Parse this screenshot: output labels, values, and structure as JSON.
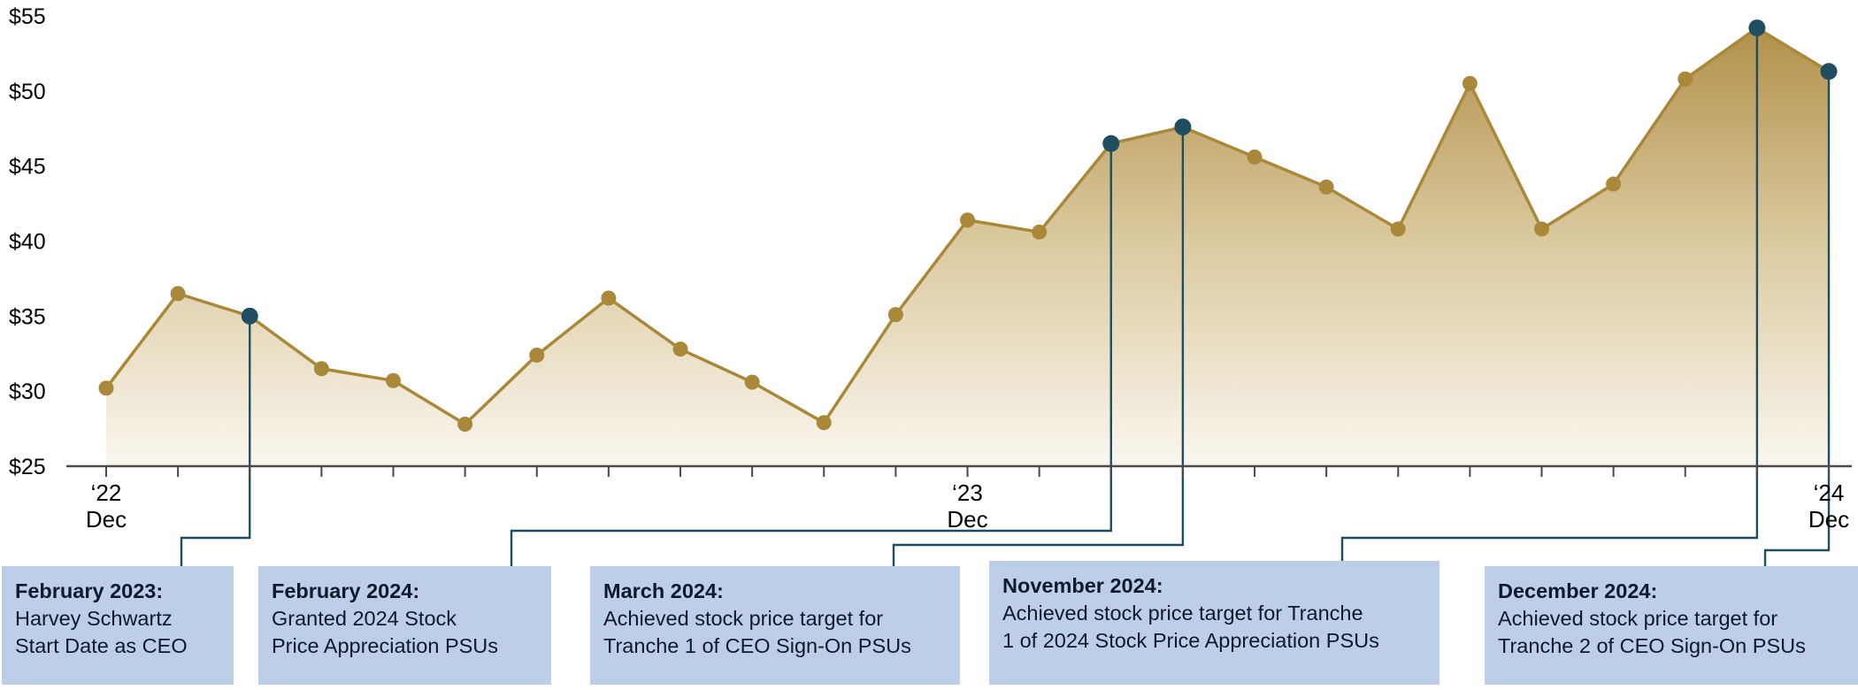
{
  "colors": {
    "line": "#AA8839",
    "marker": "#AA8839",
    "event_marker": "#1E4E60",
    "connector": "#1E4E60",
    "area_top": "#B2904A",
    "area_mid": "#DCCBA2",
    "area_bottom": "#FAF7EF",
    "axis": "#4A4A4A",
    "callout_bg": "#BDCFE8",
    "axis_text": "#000000",
    "callout_text": "#0E1A2B"
  },
  "chart_data": {
    "type": "area",
    "title": "",
    "xlabel": "",
    "ylabel": "",
    "grid": false,
    "legend": "none",
    "x": [
      "Dec '22",
      "Jan '23",
      "Feb '23",
      "Mar '23",
      "Apr '23",
      "May '23",
      "Jun '23",
      "Jul '23",
      "Aug '23",
      "Sep '23",
      "Oct '23",
      "Nov '23",
      "Dec '23",
      "Jan '24",
      "Feb '24",
      "Mar '24",
      "Apr '24",
      "May '24",
      "Jun '24",
      "Jul '24",
      "Aug '24",
      "Sep '24",
      "Oct '24",
      "Nov '24",
      "Dec '24"
    ],
    "values": [
      30.2,
      36.5,
      35.0,
      31.5,
      30.7,
      27.8,
      32.4,
      36.2,
      32.8,
      30.6,
      27.9,
      35.1,
      41.4,
      40.6,
      46.5,
      47.6,
      45.6,
      43.6,
      40.8,
      50.5,
      40.8,
      43.8,
      50.8,
      54.2,
      51.3
    ],
    "ylim": [
      25,
      55
    ],
    "ytick_values": [
      25,
      30,
      35,
      40,
      45,
      50,
      55
    ],
    "ytick_labels": [
      "$25",
      "$30",
      "$35",
      "$40",
      "$45",
      "$50",
      "$55"
    ],
    "xticks": [
      {
        "index": 0,
        "line1": "‘22",
        "line2": "Dec"
      },
      {
        "index": 12,
        "line1": "‘23",
        "line2": "Dec"
      },
      {
        "index": 24,
        "line1": "‘24",
        "line2": "Dec"
      }
    ],
    "event_point_indices": [
      2,
      14,
      15,
      23,
      24
    ]
  },
  "callouts": [
    {
      "title": "February 2023:",
      "lines": [
        "Harvey Schwartz",
        "Start Date as CEO"
      ],
      "point_index": 2
    },
    {
      "title": "February 2024:",
      "lines": [
        "Granted 2024 Stock",
        "Price Appreciation PSUs"
      ],
      "point_index": 14
    },
    {
      "title": "March 2024:",
      "lines": [
        "Achieved stock price target for",
        "Tranche 1 of CEO Sign-On PSUs"
      ],
      "point_index": 15
    },
    {
      "title": "November 2024:",
      "lines": [
        "Achieved stock price target for Tranche",
        "1 of 2024 Stock Price Appreciation PSUs"
      ],
      "point_index": 23
    },
    {
      "title": "December 2024:",
      "lines": [
        "Achieved stock price target for",
        "Tranche 2 of CEO Sign-On PSUs"
      ],
      "point_index": 24
    }
  ]
}
